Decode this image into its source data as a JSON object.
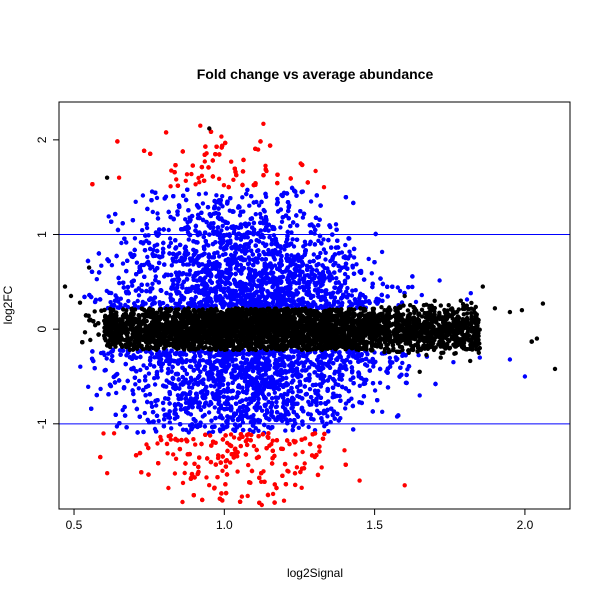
{
  "chart_data": {
    "type": "scatter",
    "title": "Fold change vs average abundance",
    "xlabel": "log2Signal",
    "ylabel": "log2FC",
    "xlim": [
      0.45,
      2.15
    ],
    "ylim": [
      -1.9,
      2.4
    ],
    "x_ticks": [
      0.5,
      1.0,
      1.5,
      2.0
    ],
    "x_tick_labels": [
      "0.5",
      "1.0",
      "1.5",
      "2.0"
    ],
    "y_ticks": [
      -1,
      0,
      1,
      2
    ],
    "y_tick_labels": [
      "-1",
      "0",
      "1",
      "2"
    ],
    "reference_lines": [
      1,
      -1
    ],
    "reference_line_color": "#0000ff",
    "series": [
      {
        "color": "#000000",
        "description_points": [
          [
            0.47,
            0.45
          ],
          [
            0.49,
            0.35
          ],
          [
            0.52,
            0.28
          ],
          [
            0.55,
            0.65
          ],
          [
            0.61,
            1.6
          ],
          [
            0.95,
            2.12
          ],
          [
            1.86,
            0.45
          ],
          [
            1.9,
            0.22
          ],
          [
            1.95,
            0.18
          ],
          [
            1.99,
            0.2
          ],
          [
            2.06,
            0.27
          ],
          [
            2.04,
            -0.1
          ],
          [
            2.1,
            -0.42
          ],
          [
            1.85,
            -0.2
          ],
          [
            1.8,
            0.1
          ],
          [
            1.75,
            -0.05
          ],
          [
            1.7,
            0.3
          ],
          [
            1.72,
            -0.3
          ],
          [
            1.65,
            -0.45
          ],
          [
            1.6,
            0.35
          ]
        ]
      },
      {
        "color": "#0000ff",
        "description_points": [
          [
            2.0,
            -0.5
          ],
          [
            1.85,
            -0.3
          ],
          [
            1.82,
            0.38
          ],
          [
            1.95,
            -0.32
          ],
          [
            1.65,
            -0.7
          ]
        ]
      },
      {
        "color": "#ff0000",
        "description_points": [
          [
            0.92,
            2.15
          ],
          [
            1.13,
            2.17
          ],
          [
            1.6,
            -1.65
          ],
          [
            1.45,
            -1.6
          ],
          [
            0.65,
            1.6
          ]
        ]
      }
    ],
    "grid": false
  }
}
